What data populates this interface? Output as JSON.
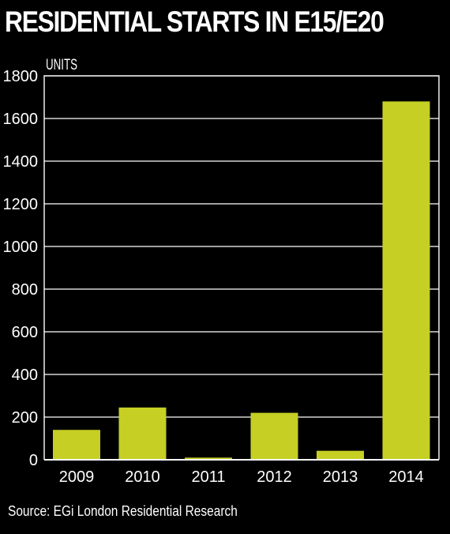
{
  "chart_data": {
    "type": "bar",
    "title": "RESIDENTIAL STARTS IN E15/E20",
    "ylabel": "UNITS",
    "xlabel": "",
    "categories": [
      "2009",
      "2010",
      "2011",
      "2012",
      "2013",
      "2014"
    ],
    "values": [
      140,
      245,
      10,
      220,
      42,
      1680
    ],
    "ylim": [
      0,
      1800
    ],
    "yticks": [
      "0",
      "200",
      "400",
      "600",
      "800",
      "1000",
      "1200",
      "1400",
      "1600",
      "1800"
    ],
    "grid": true,
    "legend": "none"
  },
  "source": "Source: EGi London Residential Research",
  "colors": {
    "background": "#000000",
    "bar": "#c5cf24",
    "grid": "#ffffff",
    "text": "#ffffff"
  }
}
